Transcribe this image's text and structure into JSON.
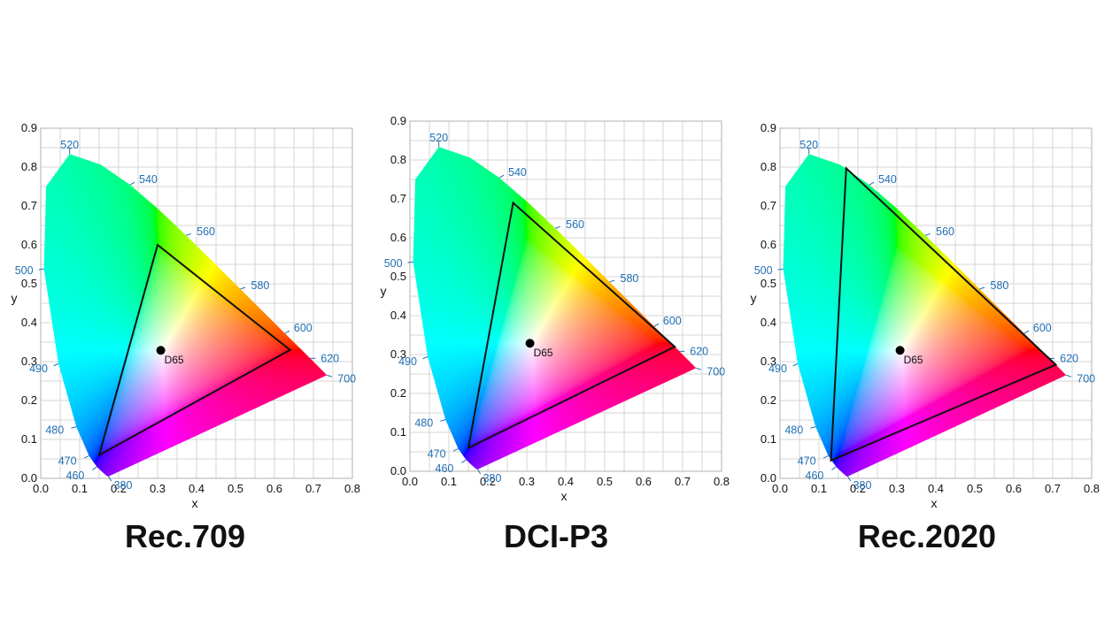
{
  "colors": {
    "grid": "#d4d4d4",
    "frame": "#b0b0b0",
    "wavelength_label": "#1f6fb4",
    "gamut_line": "#111111"
  },
  "chart_data": [
    {
      "type": "scatter",
      "title": "Rec.709",
      "xlabel": "x",
      "ylabel": "y",
      "xlim": [
        0,
        0.8
      ],
      "ylim": [
        0,
        0.9
      ],
      "x_ticks": [
        "0.0",
        "0.1",
        "0.2",
        "0.3",
        "0.4",
        "0.5",
        "0.6",
        "0.7",
        "0.8"
      ],
      "y_ticks": [
        "0.0",
        "0.1",
        "0.2",
        "0.3",
        "0.4",
        "0.5",
        "0.6",
        "0.7",
        "0.8",
        "0.9"
      ],
      "grid": true,
      "wavelength_labels": [
        "380",
        "460",
        "470",
        "480",
        "490",
        "500",
        "520",
        "540",
        "560",
        "580",
        "600",
        "620",
        "700"
      ],
      "gamut": [
        [
          0.64,
          0.33
        ],
        [
          0.3,
          0.6
        ],
        [
          0.15,
          0.06
        ]
      ],
      "white_point": {
        "name": "D65",
        "x": 0.3127,
        "y": 0.329
      }
    },
    {
      "type": "scatter",
      "title": "DCI-P3",
      "xlabel": "x",
      "ylabel": "y",
      "xlim": [
        0,
        0.8
      ],
      "ylim": [
        0,
        0.9
      ],
      "x_ticks": [
        "0.0",
        "0.1",
        "0.2",
        "0.3",
        "0.4",
        "0.5",
        "0.6",
        "0.7",
        "0.8"
      ],
      "y_ticks": [
        "0.0",
        "0.1",
        "0.2",
        "0.3",
        "0.4",
        "0.5",
        "0.6",
        "0.7",
        "0.8",
        "0.9"
      ],
      "grid": true,
      "wavelength_labels": [
        "380",
        "460",
        "470",
        "480",
        "490",
        "500",
        "520",
        "540",
        "560",
        "580",
        "600",
        "620",
        "700"
      ],
      "gamut": [
        [
          0.68,
          0.32
        ],
        [
          0.265,
          0.69
        ],
        [
          0.15,
          0.06
        ]
      ],
      "white_point": {
        "name": "D65",
        "x": 0.3127,
        "y": 0.329
      }
    },
    {
      "type": "scatter",
      "title": "Rec.2020",
      "xlabel": "x",
      "ylabel": "y",
      "xlim": [
        0,
        0.8
      ],
      "ylim": [
        0,
        0.9
      ],
      "x_ticks": [
        "0.0",
        "0.1",
        "0.2",
        "0.3",
        "0.4",
        "0.5",
        "0.6",
        "0.7",
        "0.8"
      ],
      "y_ticks": [
        "0.0",
        "0.1",
        "0.2",
        "0.3",
        "0.4",
        "0.5",
        "0.6",
        "0.7",
        "0.8",
        "0.9"
      ],
      "grid": true,
      "wavelength_labels": [
        "380",
        "460",
        "470",
        "480",
        "490",
        "500",
        "520",
        "540",
        "560",
        "580",
        "600",
        "620",
        "700"
      ],
      "gamut": [
        [
          0.708,
          0.292
        ],
        [
          0.17,
          0.797
        ],
        [
          0.131,
          0.046
        ]
      ],
      "white_point": {
        "name": "D65",
        "x": 0.3127,
        "y": 0.329
      }
    }
  ]
}
